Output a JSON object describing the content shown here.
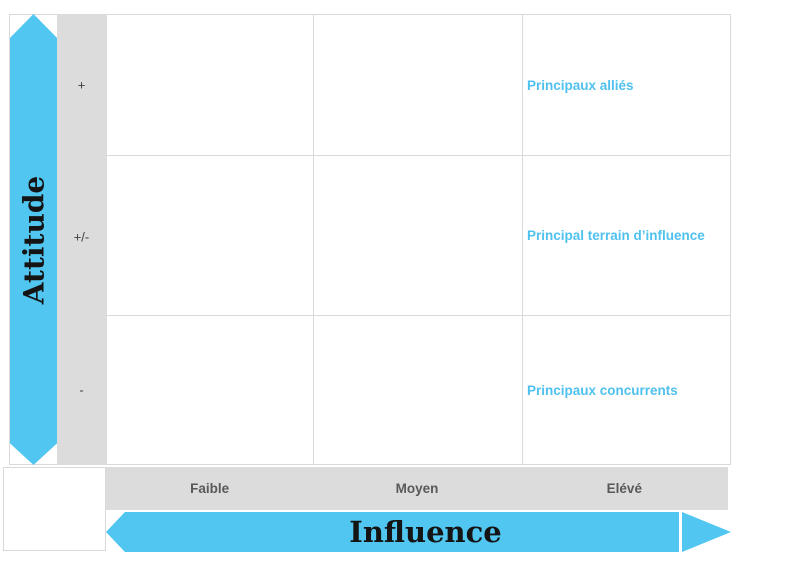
{
  "axes": {
    "y": {
      "label": "Attitude",
      "ticks": [
        "+",
        "+/-",
        "-"
      ]
    },
    "x": {
      "label": "Influence",
      "ticks": [
        "Faible",
        "Moyen",
        "Elévé"
      ]
    }
  },
  "cells": {
    "allies": "Principaux alliés",
    "terrain": "Principal terrain d’influence",
    "concurrents": "Principaux concurrents"
  },
  "colors": {
    "arrow_blue": "#50c6f0",
    "cell_label_blue": "#4fc1ee",
    "grey_fill": "#dcdcdc",
    "grid_line": "#d9d9d9",
    "tick_text": "#595959",
    "axis_title_text": "#141414"
  }
}
